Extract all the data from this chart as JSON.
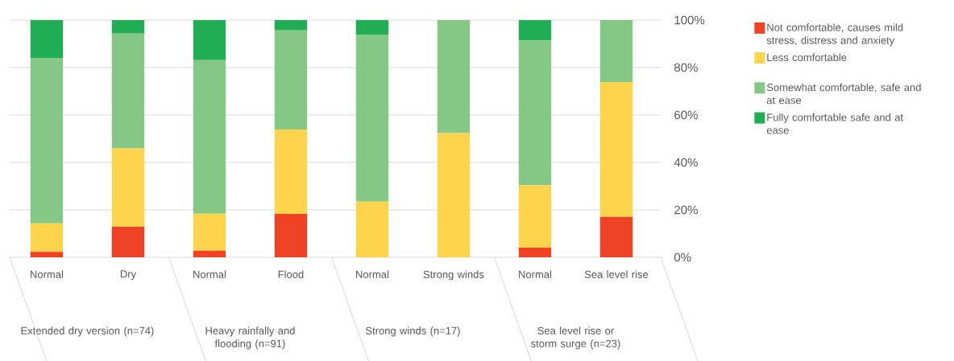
{
  "chart_data": {
    "type": "bar",
    "stacked": true,
    "categories": [
      "Normal",
      "Dry",
      "Normal",
      "Flood",
      "Normal",
      "Strong winds",
      "Normal",
      "Sea level rise"
    ],
    "series": [
      {
        "name": "Not comfortable, causes mild stress, distress and anxiety",
        "color": "#ef4123",
        "values": [
          2.3,
          12.9,
          2.8,
          18.3,
          0,
          0,
          4.1,
          17.0
        ]
      },
      {
        "name": "Less comfortable",
        "color": "#fdd44b",
        "values": [
          12.0,
          33.0,
          15.6,
          35.6,
          23.5,
          52.4,
          26.2,
          56.9
        ]
      },
      {
        "name": "Somewhat comfortable, safe and at ease",
        "color": "#85c886",
        "values": [
          69.8,
          48.4,
          64.7,
          41.8,
          70.4,
          47.6,
          61.1,
          26.1
        ]
      },
      {
        "name": "Fully comfortable safe and at ease",
        "color": "#21ad53",
        "values": [
          15.9,
          5.7,
          16.9,
          4.3,
          6.1,
          0,
          8.6,
          0
        ]
      }
    ],
    "annotations": [
      "Extended dry version (n=74)",
      "Heavy rainfally and flooding (n=91)",
      "Strong winds (n=17)",
      "Sea level rise or storm surge (n=23)"
    ],
    "ylim": [
      0,
      100
    ],
    "yticks": [
      {
        "value": 0,
        "label": "0%"
      },
      {
        "value": 20,
        "label": "20%"
      },
      {
        "value": 40,
        "label": "40%"
      },
      {
        "value": 60,
        "label": "60%"
      },
      {
        "value": 80,
        "label": "80%"
      },
      {
        "value": 100,
        "label": "100%"
      }
    ],
    "grid": "y",
    "legend": "right"
  }
}
